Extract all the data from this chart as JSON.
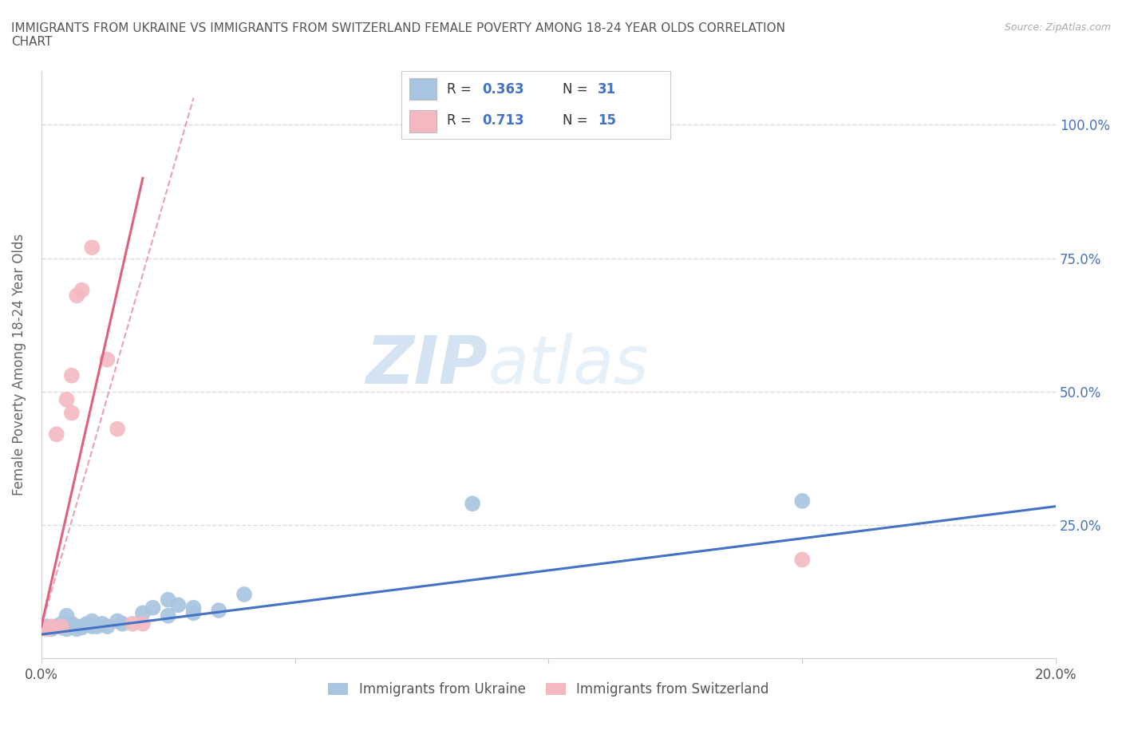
{
  "title": "IMMIGRANTS FROM UKRAINE VS IMMIGRANTS FROM SWITZERLAND FEMALE POVERTY AMONG 18-24 YEAR OLDS CORRELATION\nCHART",
  "source": "Source: ZipAtlas.com",
  "ylabel": "Female Poverty Among 18-24 Year Olds",
  "xlim": [
    0.0,
    0.2
  ],
  "ylim": [
    0.0,
    1.1
  ],
  "xticks": [
    0.0,
    0.05,
    0.1,
    0.15,
    0.2
  ],
  "xticklabels": [
    "0.0%",
    "",
    "",
    "",
    "20.0%"
  ],
  "yticks": [
    0.25,
    0.5,
    0.75,
    1.0
  ],
  "yticklabels": [
    "25.0%",
    "50.0%",
    "75.0%",
    "100.0%"
  ],
  "ukraine_color": "#a8c4e0",
  "ukraine_line_color": "#4472c4",
  "switzerland_color": "#f4b8c1",
  "switzerland_line_color": "#e06080",
  "R_ukraine": 0.363,
  "N_ukraine": 31,
  "R_switzerland": 0.713,
  "N_switzerland": 15,
  "legend_label_ukraine": "Immigrants from Ukraine",
  "legend_label_switzerland": "Immigrants from Switzerland",
  "watermark_zip": "ZIP",
  "watermark_atlas": "atlas",
  "background_color": "#ffffff",
  "grid_color": "#d8d8d8",
  "ukraine_points_x": [
    0.001,
    0.002,
    0.003,
    0.004,
    0.004,
    0.005,
    0.005,
    0.006,
    0.007,
    0.007,
    0.008,
    0.008,
    0.009,
    0.01,
    0.01,
    0.011,
    0.012,
    0.013,
    0.015,
    0.016,
    0.02,
    0.022,
    0.025,
    0.025,
    0.027,
    0.03,
    0.03,
    0.035,
    0.04,
    0.085,
    0.15
  ],
  "ukraine_points_y": [
    0.06,
    0.055,
    0.06,
    0.058,
    0.065,
    0.055,
    0.08,
    0.065,
    0.055,
    0.06,
    0.06,
    0.058,
    0.065,
    0.06,
    0.07,
    0.06,
    0.065,
    0.06,
    0.07,
    0.065,
    0.085,
    0.095,
    0.11,
    0.08,
    0.1,
    0.085,
    0.095,
    0.09,
    0.12,
    0.29,
    0.295
  ],
  "switzerland_points_x": [
    0.001,
    0.002,
    0.003,
    0.004,
    0.005,
    0.006,
    0.006,
    0.007,
    0.008,
    0.01,
    0.013,
    0.015,
    0.018,
    0.02,
    0.15
  ],
  "switzerland_points_y": [
    0.055,
    0.06,
    0.42,
    0.06,
    0.485,
    0.46,
    0.53,
    0.68,
    0.69,
    0.77,
    0.56,
    0.43,
    0.065,
    0.065,
    0.185
  ],
  "ukraine_line_x": [
    0.0,
    0.2
  ],
  "ukraine_line_y": [
    0.045,
    0.285
  ],
  "switzerland_line_x": [
    0.0,
    0.02
  ],
  "switzerland_line_y": [
    0.06,
    0.9
  ]
}
